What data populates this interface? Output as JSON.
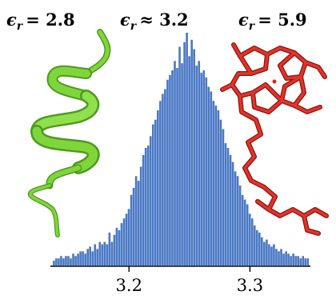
{
  "labels": {
    "left_value": "= 2.8",
    "middle_value": "≈ 3.2",
    "right_value": "= 5.9",
    "symbol_main": "ϵ",
    "symbol_sub": "r"
  },
  "colors": {
    "bars": "#4a78c4",
    "helix": "#7fd63b",
    "helix_dark": "#4e9a1c",
    "porphyrin": "#d8281f",
    "porphyrin_dark": "#8e120d"
  },
  "illustrations": {
    "left": "green-alpha-helix-protein-ribbon",
    "right": "red-porphyrin-stick-molecule"
  },
  "chart_data": {
    "type": "bar",
    "subtype": "histogram",
    "xlim": [
      3.135,
      3.35
    ],
    "ylim": [
      0,
      1.0
    ],
    "x_ticks": [
      3.2,
      3.3
    ],
    "x_tick_labels": [
      "3.2",
      "3.3"
    ],
    "y_axis_visible": false,
    "grid": false,
    "bin_start": 3.137,
    "bin_width": 0.002,
    "values": [
      0.02,
      0.03,
      0.03,
      0.04,
      0.03,
      0.04,
      0.04,
      0.03,
      0.05,
      0.04,
      0.05,
      0.06,
      0.06,
      0.05,
      0.07,
      0.08,
      0.06,
      0.09,
      0.07,
      0.1,
      0.09,
      0.1,
      0.09,
      0.14,
      0.1,
      0.13,
      0.16,
      0.15,
      0.18,
      0.2,
      0.22,
      0.24,
      0.3,
      0.33,
      0.38,
      0.36,
      0.42,
      0.47,
      0.5,
      0.51,
      0.55,
      0.6,
      0.62,
      0.66,
      0.7,
      0.73,
      0.75,
      0.79,
      0.81,
      0.83,
      0.87,
      0.84,
      0.93,
      0.86,
      0.95,
      0.99,
      0.89,
      0.96,
      0.92,
      0.85,
      0.87,
      0.82,
      0.83,
      0.8,
      0.76,
      0.74,
      0.7,
      0.68,
      0.66,
      0.62,
      0.58,
      0.52,
      0.5,
      0.47,
      0.44,
      0.4,
      0.38,
      0.34,
      0.3,
      0.28,
      0.26,
      0.22,
      0.2,
      0.17,
      0.15,
      0.14,
      0.12,
      0.1,
      0.11,
      0.09,
      0.08,
      0.09,
      0.07,
      0.06,
      0.07,
      0.05,
      0.06,
      0.05,
      0.04,
      0.05,
      0.04,
      0.04,
      0.03,
      0.04,
      0.03,
      0.03
    ]
  }
}
